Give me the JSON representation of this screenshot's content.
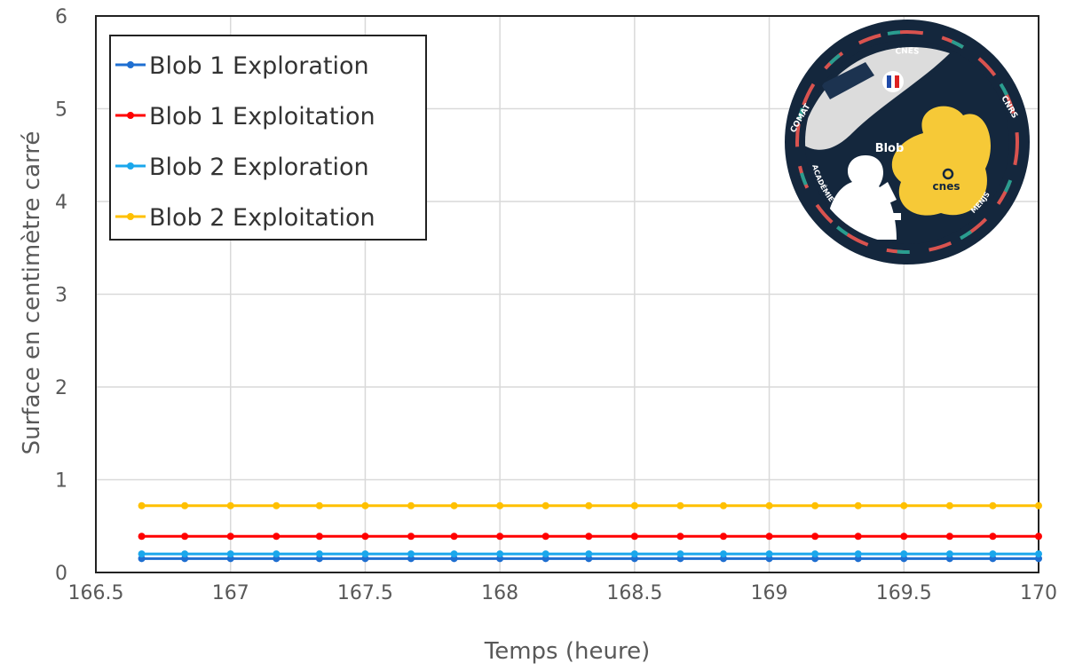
{
  "chart_data": {
    "type": "line",
    "title": "",
    "xlabel": "Temps (heure)",
    "ylabel": "Surface en centimètre carré",
    "xlim": [
      166.5,
      170
    ],
    "ylim": [
      0,
      6
    ],
    "xticks": [
      166.5,
      167,
      167.5,
      168,
      168.5,
      169,
      169.5,
      170
    ],
    "yticks": [
      0,
      1,
      2,
      3,
      4,
      5,
      6
    ],
    "x_tick_labels": [
      "166.5",
      "167",
      "167.5",
      "168",
      "168.5",
      "169",
      "169.5",
      "170"
    ],
    "y_tick_labels": [
      "0",
      "1",
      "2",
      "3",
      "4",
      "5",
      "6"
    ],
    "grid": true,
    "legend_position": "top-left",
    "x": [
      166.67,
      166.83,
      167.0,
      167.17,
      167.33,
      167.5,
      167.67,
      167.83,
      168.0,
      168.17,
      168.33,
      168.5,
      168.67,
      168.83,
      169.0,
      169.17,
      169.33,
      169.5,
      169.67,
      169.83,
      170.0
    ],
    "series": [
      {
        "name": "Blob 1 Exploration",
        "color": "#1f6fd1",
        "values": [
          0.15,
          0.15,
          0.15,
          0.15,
          0.15,
          0.15,
          0.15,
          0.15,
          0.15,
          0.15,
          0.15,
          0.15,
          0.15,
          0.15,
          0.15,
          0.15,
          0.15,
          0.15,
          0.15,
          0.15,
          0.15
        ]
      },
      {
        "name": "Blob 1 Exploitation",
        "color": "#ff0000",
        "values": [
          0.39,
          0.39,
          0.39,
          0.39,
          0.39,
          0.39,
          0.39,
          0.39,
          0.39,
          0.39,
          0.39,
          0.39,
          0.39,
          0.39,
          0.39,
          0.39,
          0.39,
          0.39,
          0.39,
          0.39,
          0.39
        ]
      },
      {
        "name": "Blob 2 Exploration",
        "color": "#1aa7ec",
        "values": [
          0.2,
          0.2,
          0.2,
          0.2,
          0.2,
          0.2,
          0.2,
          0.2,
          0.2,
          0.2,
          0.2,
          0.2,
          0.2,
          0.2,
          0.2,
          0.2,
          0.2,
          0.2,
          0.2,
          0.2,
          0.2
        ]
      },
      {
        "name": "Blob 2 Exploitation",
        "color": "#ffc000",
        "values": [
          0.72,
          0.72,
          0.72,
          0.72,
          0.72,
          0.72,
          0.72,
          0.72,
          0.72,
          0.72,
          0.72,
          0.72,
          0.72,
          0.72,
          0.72,
          0.72,
          0.72,
          0.72,
          0.72,
          0.72,
          0.72
        ]
      }
    ]
  },
  "patch": {
    "top_text": "CNES",
    "left_text": "COMAT",
    "right_text": "CNRS",
    "bottom_left_text": "ACADÉMIE DE TOULOUSE",
    "bottom_right_text": "MENJS",
    "center_text": "Blob",
    "logo_text": "cnes",
    "colors": {
      "ring": "#14273d",
      "blob": "#f6c937",
      "sky": "#dcdcdc"
    }
  }
}
